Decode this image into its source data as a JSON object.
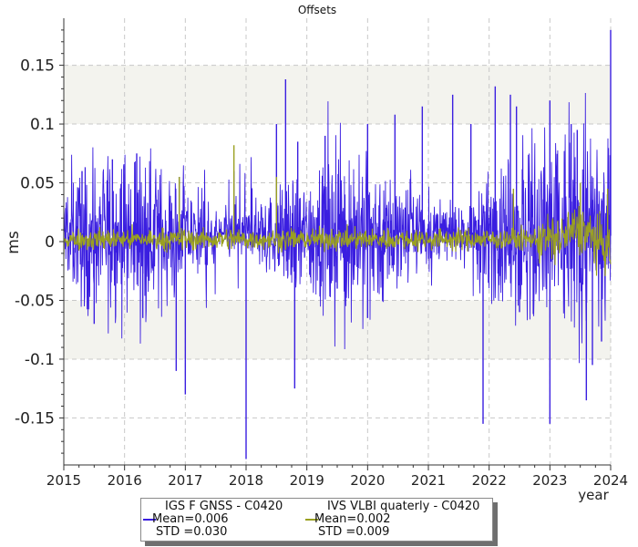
{
  "chart_data": {
    "type": "line",
    "title": "Offsets",
    "xlabel": "year",
    "ylabel": "ms",
    "xlim": [
      2015,
      2024
    ],
    "ylim": [
      -0.19,
      0.19
    ],
    "x_ticks": [
      "2015",
      "2016",
      "2017",
      "2018",
      "2019",
      "2020",
      "2021",
      "2022",
      "2023",
      "2024"
    ],
    "y_ticks": [
      "-0.15",
      "-0.1",
      "-0.05",
      "0",
      "0.05",
      "0.1",
      "0.15"
    ],
    "grid": true,
    "legend_position": "bottom-center",
    "series": [
      {
        "name": "IGS F GNSS - C0420",
        "color": "#3a1ee0",
        "mean_label": "Mean=0.006",
        "std_label": "STD =0.030",
        "peaks": [
          {
            "x": 2015.3,
            "y": 0.06
          },
          {
            "x": 2015.5,
            "y": -0.07
          },
          {
            "x": 2015.8,
            "y": 0.07
          },
          {
            "x": 2016.2,
            "y": 0.075
          },
          {
            "x": 2016.3,
            "y": -0.065
          },
          {
            "x": 2016.9,
            "y": 0.055
          },
          {
            "x": 2017.0,
            "y": -0.13
          },
          {
            "x": 2016.85,
            "y": -0.11
          },
          {
            "x": 2017.8,
            "y": 0.06
          },
          {
            "x": 2018.0,
            "y": -0.185
          },
          {
            "x": 2018.5,
            "y": 0.1
          },
          {
            "x": 2018.65,
            "y": 0.138
          },
          {
            "x": 2018.85,
            "y": 0.085
          },
          {
            "x": 2018.8,
            "y": -0.125
          },
          {
            "x": 2019.3,
            "y": 0.09
          },
          {
            "x": 2019.5,
            "y": -0.04
          },
          {
            "x": 2020.0,
            "y": 0.1
          },
          {
            "x": 2020.0,
            "y": -0.065
          },
          {
            "x": 2020.45,
            "y": 0.108
          },
          {
            "x": 2020.9,
            "y": 0.115
          },
          {
            "x": 2021.4,
            "y": 0.125
          },
          {
            "x": 2021.7,
            "y": 0.1
          },
          {
            "x": 2021.9,
            "y": -0.155
          },
          {
            "x": 2022.1,
            "y": 0.132
          },
          {
            "x": 2022.35,
            "y": 0.125
          },
          {
            "x": 2022.45,
            "y": 0.115
          },
          {
            "x": 2022.5,
            "y": -0.06
          },
          {
            "x": 2023.0,
            "y": 0.12
          },
          {
            "x": 2023.0,
            "y": -0.155
          },
          {
            "x": 2023.35,
            "y": 0.1
          },
          {
            "x": 2023.45,
            "y": 0.095
          },
          {
            "x": 2023.7,
            "y": -0.105
          },
          {
            "x": 2023.85,
            "y": -0.085
          },
          {
            "x": 2023.6,
            "y": -0.135
          },
          {
            "x": 2024.0,
            "y": 0.18
          }
        ]
      },
      {
        "name": "IVS VLBI quaterly - C0420",
        "color": "#9aa020",
        "mean_label": "Mean=0.002",
        "std_label": "STD =0.009",
        "peaks": [
          {
            "x": 2016.9,
            "y": 0.055
          },
          {
            "x": 2017.8,
            "y": 0.082
          },
          {
            "x": 2018.5,
            "y": 0.055
          },
          {
            "x": 2022.4,
            "y": 0.045
          },
          {
            "x": 2023.5,
            "y": 0.05
          },
          {
            "x": 2023.95,
            "y": 0.045
          }
        ]
      }
    ]
  }
}
